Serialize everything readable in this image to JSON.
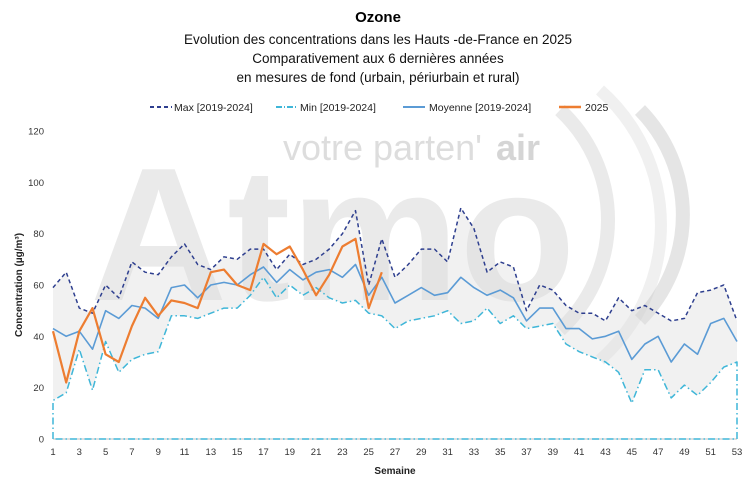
{
  "chart_data": {
    "type": "line",
    "title": "Ozone",
    "subtitle_lines": [
      "Evolution des concentrations dans les Hauts -de-France en 2025",
      "Comparativement aux 6 dernières années",
      "en mesures de fond (urbain, périurbain et rural)"
    ],
    "xlabel": "Semaine",
    "ylabel": "Concentration (µg/m³)",
    "ylim": [
      0,
      120
    ],
    "yticks": [
      0,
      20,
      40,
      60,
      80,
      100,
      120
    ],
    "xlim": [
      1,
      53
    ],
    "xticks": [
      1,
      3,
      5,
      7,
      9,
      11,
      13,
      15,
      17,
      19,
      21,
      23,
      25,
      27,
      29,
      31,
      33,
      35,
      37,
      39,
      41,
      43,
      45,
      47,
      49,
      51,
      53
    ],
    "legend_position": "top",
    "watermark": {
      "main": "Atmo",
      "tagline_plain": "votre parten'",
      "tagline_bold": "air"
    },
    "series": [
      {
        "name": "Max [2019-2024]",
        "color": "#2e3f8f",
        "style": "dashed",
        "x": [
          1,
          2,
          3,
          4,
          5,
          6,
          7,
          8,
          9,
          10,
          11,
          12,
          13,
          14,
          15,
          16,
          17,
          18,
          19,
          20,
          21,
          22,
          23,
          24,
          25,
          26,
          27,
          28,
          29,
          30,
          31,
          32,
          33,
          34,
          35,
          36,
          37,
          38,
          39,
          40,
          41,
          42,
          43,
          44,
          45,
          46,
          47,
          48,
          49,
          50,
          51,
          52,
          53
        ],
        "values": [
          59,
          65,
          51,
          49,
          60,
          55,
          69,
          65,
          64,
          71,
          76,
          68,
          66,
          71,
          70,
          74,
          74,
          66,
          72,
          68,
          70,
          74,
          80,
          89,
          60,
          78,
          63,
          68,
          74,
          74,
          69,
          90,
          82,
          65,
          69,
          67,
          50,
          60,
          58,
          52,
          49,
          49,
          46,
          55,
          50,
          52,
          49,
          46,
          47,
          57,
          58,
          60,
          46
        ]
      },
      {
        "name": "Min [2019-2024]",
        "color": "#3fb6d8",
        "style": "dashdot",
        "x": [
          1,
          2,
          3,
          4,
          5,
          6,
          7,
          8,
          9,
          10,
          11,
          12,
          13,
          14,
          15,
          16,
          17,
          18,
          19,
          20,
          21,
          22,
          23,
          24,
          25,
          26,
          27,
          28,
          29,
          30,
          31,
          32,
          33,
          34,
          35,
          36,
          37,
          38,
          39,
          40,
          41,
          42,
          43,
          44,
          45,
          46,
          47,
          48,
          49,
          50,
          51,
          52,
          53
        ],
        "values": [
          15,
          18,
          35,
          19,
          38,
          26,
          31,
          33,
          34,
          48,
          48,
          47,
          49,
          51,
          51,
          56,
          63,
          55,
          60,
          56,
          59,
          55,
          53,
          54,
          49,
          48,
          43,
          46,
          47,
          48,
          50,
          45,
          46,
          51,
          45,
          48,
          43,
          44,
          45,
          37,
          34,
          32,
          30,
          26,
          14,
          27,
          27,
          16,
          21,
          17,
          22,
          28,
          30
        ],
        "baseline_value": 0
      },
      {
        "name": "Moyenne [2019-2024]",
        "color": "#5b9bd5",
        "style": "solid",
        "x": [
          1,
          2,
          3,
          4,
          5,
          6,
          7,
          8,
          9,
          10,
          11,
          12,
          13,
          14,
          15,
          16,
          17,
          18,
          19,
          20,
          21,
          22,
          23,
          24,
          25,
          26,
          27,
          28,
          29,
          30,
          31,
          32,
          33,
          34,
          35,
          36,
          37,
          38,
          39,
          40,
          41,
          42,
          43,
          44,
          45,
          46,
          47,
          48,
          49,
          50,
          51,
          52,
          53
        ],
        "values": [
          43,
          40,
          42,
          35,
          50,
          47,
          52,
          51,
          47,
          59,
          60,
          55,
          60,
          61,
          60,
          64,
          67,
          61,
          66,
          62,
          65,
          66,
          63,
          68,
          56,
          63,
          53,
          56,
          59,
          56,
          57,
          63,
          59,
          56,
          58,
          55,
          46,
          51,
          51,
          43,
          43,
          39,
          40,
          42,
          31,
          37,
          40,
          30,
          37,
          33,
          45,
          47,
          38
        ]
      },
      {
        "name": "2025",
        "color": "#ed7d31",
        "style": "solid",
        "x": [
          1,
          2,
          3,
          4,
          5,
          6,
          7,
          8,
          9,
          10,
          11,
          12,
          13,
          14,
          15,
          16,
          17,
          18,
          19,
          20,
          21,
          22,
          23,
          24,
          25,
          26
        ],
        "values": [
          42,
          22,
          42,
          51,
          33,
          30,
          44,
          55,
          48,
          54,
          53,
          51,
          65,
          66,
          60,
          58,
          76,
          72,
          75,
          66,
          56,
          64,
          75,
          78,
          51,
          65
        ]
      }
    ]
  }
}
